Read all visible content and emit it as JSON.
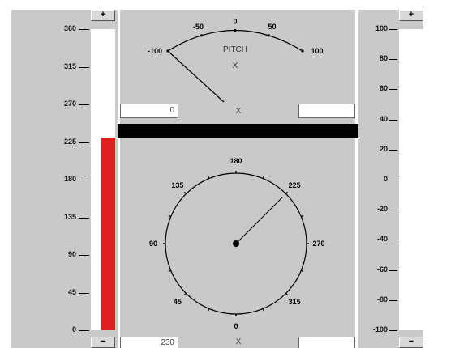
{
  "left_slider": {
    "ticks": [
      "360",
      "315",
      "270",
      "225",
      "180",
      "135",
      "90",
      "45",
      "0"
    ],
    "plus_label": "+",
    "minus_label": "−",
    "value_fraction": 0.64,
    "fill_color": "#e02020"
  },
  "pitch_meter": {
    "ticks": [
      "-100",
      "-50",
      "0",
      "50",
      "100"
    ],
    "title": "PITCH",
    "subtitle": "X",
    "left_field_value": "0",
    "center_label": "X",
    "right_field_value": "",
    "needle_value": -100
  },
  "compass_dial": {
    "ticks": [
      "180",
      "225",
      "270",
      "315",
      "0",
      "45",
      "90",
      "135"
    ],
    "needle_value": 225,
    "bottom_field_value": "230",
    "center_label": "X",
    "right_field_value": ""
  },
  "right_slider": {
    "ticks": [
      "100",
      "80",
      "60",
      "40",
      "20",
      "0",
      "-20",
      "-40",
      "-60",
      "-80",
      "-100"
    ],
    "plus_label": "+",
    "minus_label": "−"
  },
  "colors": {
    "panel_bg": "#c9c9c9",
    "divider_bar": "#000000",
    "accent_red": "#e02020"
  }
}
